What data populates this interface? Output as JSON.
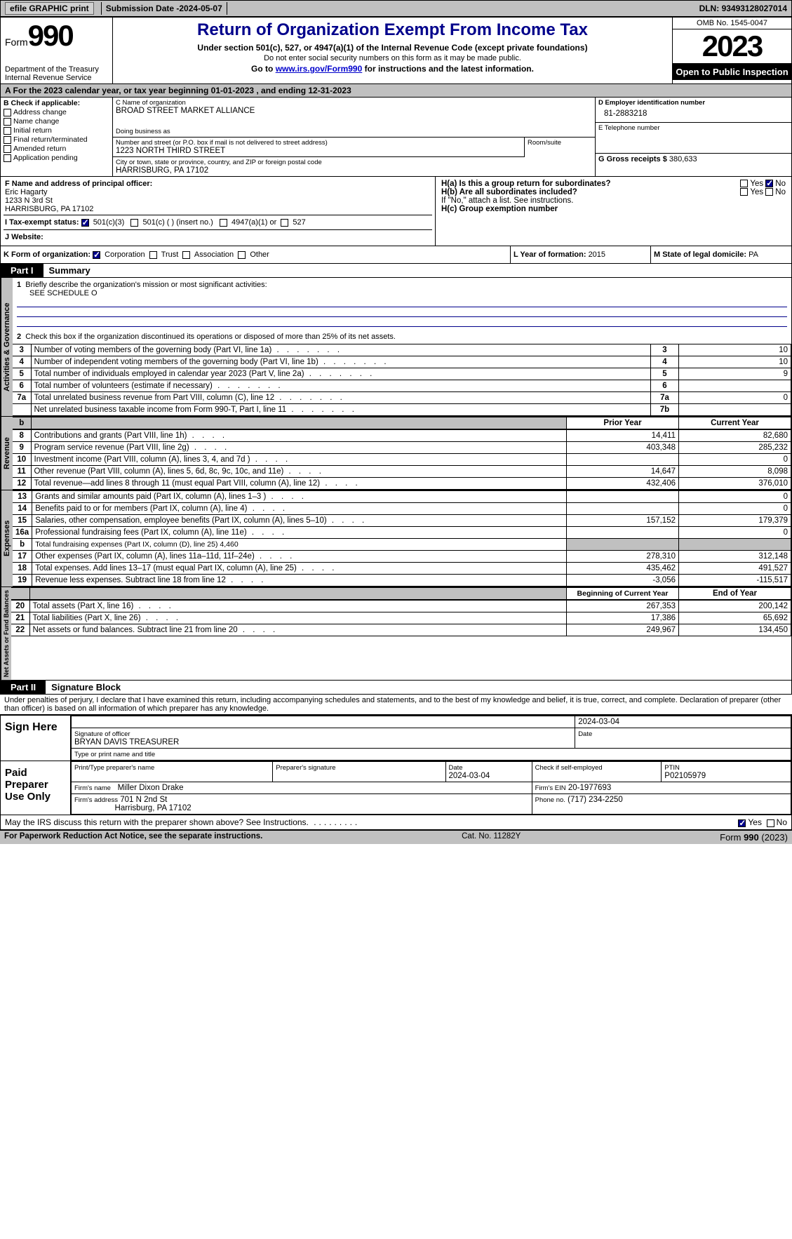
{
  "topbar": {
    "efile": "efile GRAPHIC print",
    "subdate_lbl": "Submission Date - ",
    "subdate": "2024-05-07",
    "dln_lbl": "DLN: ",
    "dln": "93493128027014"
  },
  "header": {
    "form": "Form",
    "num": "990",
    "dept": "Department of the Treasury\nInternal Revenue Service",
    "title": "Return of Organization Exempt From Income Tax",
    "sub": "Under section 501(c), 527, or 4947(a)(1) of the Internal Revenue Code (except private foundations)",
    "note": "Do not enter social security numbers on this form as it may be made public.",
    "goto": "Go to ",
    "link": "www.irs.gov/Form990",
    "goto2": " for instructions and the latest information.",
    "omb": "OMB No. 1545-0047",
    "year": "2023",
    "open": "Open to Public Inspection"
  },
  "taxyear": "A For the 2023 calendar year, or tax year beginning 01-01-2023    , and ending 12-31-2023",
  "B": {
    "hdr": "B Check if applicable:",
    "items": [
      "Address change",
      "Name change",
      "Initial return",
      "Final return/terminated",
      "Amended return",
      "Application pending"
    ]
  },
  "C": {
    "name_lbl": "C Name of organization",
    "name": "BROAD STREET MARKET ALLIANCE",
    "dba_lbl": "Doing business as",
    "addr_lbl": "Number and street (or P.O. box if mail is not delivered to street address)",
    "addr": "1223 NORTH THIRD STREET",
    "room_lbl": "Room/suite",
    "city_lbl": "City or town, state or province, country, and ZIP or foreign postal code",
    "city": "HARRISBURG, PA  17102"
  },
  "D": {
    "lbl": "D Employer identification number",
    "val": "81-2883218"
  },
  "E": {
    "lbl": "E Telephone number"
  },
  "G": {
    "lbl": "G Gross receipts $ ",
    "val": "380,633"
  },
  "F": {
    "lbl": "F  Name and address of principal officer:",
    "name": "Eric Hagarty",
    "addr1": "1233 N 3rd St",
    "addr2": "HARRISBURG, PA  17102"
  },
  "H": {
    "a": "H(a)  Is this a group return for subordinates?",
    "b": "H(b)  Are all subordinates included?",
    "bnote": "If \"No,\" attach a list. See instructions.",
    "c": "H(c)  Group exemption number",
    "yes": "Yes",
    "no": "No"
  },
  "I": {
    "lbl": "I  Tax-exempt status:",
    "o1": "501(c)(3)",
    "o2": "501(c) (  ) (insert no.)",
    "o3": "4947(a)(1) or",
    "o4": "527"
  },
  "J": {
    "lbl": "J  Website:"
  },
  "K": {
    "lbl": "K Form of organization:",
    "o1": "Corporation",
    "o2": "Trust",
    "o3": "Association",
    "o4": "Other"
  },
  "L": {
    "lbl": "L Year of formation: ",
    "val": "2015"
  },
  "M": {
    "lbl": "M State of legal domicile: ",
    "val": "PA"
  },
  "part1": {
    "bar": "Part I",
    "title": "Summary"
  },
  "p1": {
    "l1a": "Briefly describe the organization's mission or most significant activities:",
    "l1b": "SEE SCHEDULE O",
    "l2": "Check this box       if the organization discontinued its operations or disposed of more than 25% of its net assets.",
    "rows_gov": [
      {
        "n": "3",
        "d": "Number of voting members of the governing body (Part VI, line 1a)",
        "i": "3",
        "v": "10"
      },
      {
        "n": "4",
        "d": "Number of independent voting members of the governing body (Part VI, line 1b)",
        "i": "4",
        "v": "10"
      },
      {
        "n": "5",
        "d": "Total number of individuals employed in calendar year 2023 (Part V, line 2a)",
        "i": "5",
        "v": "9"
      },
      {
        "n": "6",
        "d": "Total number of volunteers (estimate if necessary)",
        "i": "6",
        "v": ""
      },
      {
        "n": "7a",
        "d": "Total unrelated business revenue from Part VIII, column (C), line 12",
        "i": "7a",
        "v": "0"
      },
      {
        "n": "",
        "d": "Net unrelated business taxable income from Form 990-T, Part I, line 11",
        "i": "7b",
        "v": ""
      }
    ],
    "py": "Prior Year",
    "cy": "Current Year",
    "rows_rev": [
      {
        "n": "8",
        "d": "Contributions and grants (Part VIII, line 1h)",
        "p": "14,411",
        "c": "82,680"
      },
      {
        "n": "9",
        "d": "Program service revenue (Part VIII, line 2g)",
        "p": "403,348",
        "c": "285,232"
      },
      {
        "n": "10",
        "d": "Investment income (Part VIII, column (A), lines 3, 4, and 7d )",
        "p": "",
        "c": "0"
      },
      {
        "n": "11",
        "d": "Other revenue (Part VIII, column (A), lines 5, 6d, 8c, 9c, 10c, and 11e)",
        "p": "14,647",
        "c": "8,098"
      },
      {
        "n": "12",
        "d": "Total revenue—add lines 8 through 11 (must equal Part VIII, column (A), line 12)",
        "p": "432,406",
        "c": "376,010"
      }
    ],
    "rows_exp": [
      {
        "n": "13",
        "d": "Grants and similar amounts paid (Part IX, column (A), lines 1–3 )",
        "p": "",
        "c": "0"
      },
      {
        "n": "14",
        "d": "Benefits paid to or for members (Part IX, column (A), line 4)",
        "p": "",
        "c": "0"
      },
      {
        "n": "15",
        "d": "Salaries, other compensation, employee benefits (Part IX, column (A), lines 5–10)",
        "p": "157,152",
        "c": "179,379"
      },
      {
        "n": "16a",
        "d": "Professional fundraising fees (Part IX, column (A), line 11e)",
        "p": "",
        "c": "0"
      },
      {
        "n": "b",
        "d": "Total fundraising expenses (Part IX, column (D), line 25) 4,460",
        "shade": true
      },
      {
        "n": "17",
        "d": "Other expenses (Part IX, column (A), lines 11a–11d, 11f–24e)",
        "p": "278,310",
        "c": "312,148"
      },
      {
        "n": "18",
        "d": "Total expenses. Add lines 13–17 (must equal Part IX, column (A), line 25)",
        "p": "435,462",
        "c": "491,527"
      },
      {
        "n": "19",
        "d": "Revenue less expenses. Subtract line 18 from line 12",
        "p": "-3,056",
        "c": "-115,517"
      }
    ],
    "bcy": "Beginning of Current Year",
    "eoy": "End of Year",
    "rows_net": [
      {
        "n": "20",
        "d": "Total assets (Part X, line 16)",
        "p": "267,353",
        "c": "200,142"
      },
      {
        "n": "21",
        "d": "Total liabilities (Part X, line 26)",
        "p": "17,386",
        "c": "65,692"
      },
      {
        "n": "22",
        "d": "Net assets or fund balances. Subtract line 21 from line 20",
        "p": "249,967",
        "c": "134,450"
      }
    ]
  },
  "part2": {
    "bar": "Part II",
    "title": "Signature Block"
  },
  "perjury": "Under penalties of perjury, I declare that I have examined this return, including accompanying schedules and statements, and to the best of my knowledge and belief, it is true, correct, and complete. Declaration of preparer (other than officer) is based on all information of which preparer has any knowledge.",
  "sign": {
    "here": "Sign Here",
    "sig_lbl": "Signature of officer",
    "name": "BRYAN DAVIS TREASURER",
    "name_lbl": "Type or print name and title",
    "date_lbl": "Date",
    "date": "2024-03-04"
  },
  "prep": {
    "lbl": "Paid Preparer Use Only",
    "pname_lbl": "Print/Type preparer's name",
    "psig_lbl": "Preparer's signature",
    "pdate_lbl": "Date",
    "pdate": "2024-03-04",
    "pse": "Check        if self-employed",
    "ptin_lbl": "PTIN",
    "ptin": "P02105979",
    "firm_lbl": "Firm's name",
    "firm": "Miller Dixon Drake",
    "fein_lbl": "Firm's EIN",
    "fein": "20-1977693",
    "faddr_lbl": "Firm's address",
    "faddr1": "701 N 2nd St",
    "faddr2": "Harrisburg, PA  17102",
    "phone_lbl": "Phone no.",
    "phone": "(717) 234-2250"
  },
  "may": {
    "q": "May the IRS discuss this return with the preparer shown above? See Instructions.",
    "yes": "Yes",
    "no": "No"
  },
  "foot": {
    "l": "For Paperwork Reduction Act Notice, see the separate instructions.",
    "c": "Cat. No. 11282Y",
    "r": "Form 990 (2023)"
  },
  "labels": {
    "gov": "Activities & Governance",
    "rev": "Revenue",
    "exp": "Expenses",
    "net": "Net Assets or Fund Balances"
  }
}
